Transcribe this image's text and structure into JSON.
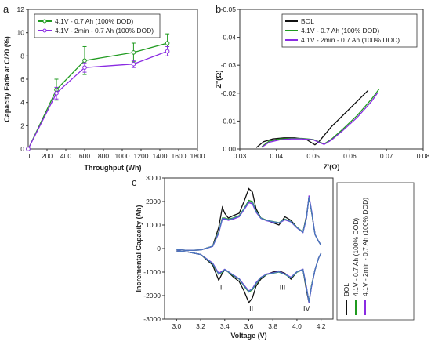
{
  "colors": {
    "black": "#111111",
    "green": "#1f9a1f",
    "purple": "#8a2be2",
    "blue": "#4a78c0"
  },
  "chart_data": [
    {
      "id": "a",
      "type": "line",
      "panel_label": "a",
      "xlabel": "Throughput (Wh)",
      "ylabel": "Capacity Fade at C/20 (%)",
      "xlim": [
        0,
        1800
      ],
      "ylim": [
        0,
        12
      ],
      "xticks": [
        "0",
        "200",
        "400",
        "600",
        "800",
        "1000",
        "1200",
        "1400",
        "1600",
        "1800"
      ],
      "yticks": [
        "0",
        "2",
        "4",
        "6",
        "8",
        "10",
        "12"
      ],
      "legend_position": "top-left",
      "series": [
        {
          "name": "4.1V - 0.7 Ah (100% DOD)",
          "color": "#1f9a1f",
          "x": [
            0,
            300,
            600,
            1120,
            1480
          ],
          "y": [
            0,
            5.1,
            7.6,
            8.3,
            9.1
          ],
          "err": [
            0,
            0.9,
            1.2,
            0.8,
            0.8
          ]
        },
        {
          "name": "4.1V - 2min - 0.7 Ah (100% DOD)",
          "color": "#8a2be2",
          "x": [
            0,
            300,
            600,
            1120,
            1480
          ],
          "y": [
            0,
            4.8,
            7.0,
            7.3,
            8.4
          ],
          "err": [
            0,
            0.5,
            0.4,
            0.3,
            0.4
          ]
        }
      ]
    },
    {
      "id": "b",
      "type": "line",
      "panel_label": "b",
      "xlabel": "Z'(Ω)",
      "ylabel": "Z''(Ω)",
      "xlim": [
        0.03,
        0.08
      ],
      "ylim": [
        0.0,
        -0.05
      ],
      "xticks": [
        "0.03",
        "0.04",
        "0.05",
        "0.06",
        "0.07",
        "0.08"
      ],
      "yticks": [
        "0.00",
        "-0.01",
        "-0.02",
        "-0.03",
        "-0.04",
        "-0.05"
      ],
      "legend_position": "top-right",
      "series": [
        {
          "name": "BOL",
          "color": "#111111",
          "x": [
            0.0345,
            0.0365,
            0.039,
            0.042,
            0.045,
            0.048,
            0.0505,
            0.0515,
            0.055,
            0.06,
            0.065
          ],
          "y": [
            -0.0005,
            -0.0026,
            -0.0036,
            -0.004,
            -0.004,
            -0.0035,
            -0.0015,
            -0.0025,
            -0.008,
            -0.0145,
            -0.021
          ]
        },
        {
          "name": "4.1V - 0.7 Ah (100% DOD)",
          "color": "#1f9a1f",
          "x": [
            0.036,
            0.038,
            0.041,
            0.044,
            0.047,
            0.05,
            0.053,
            0.055,
            0.058,
            0.062,
            0.066,
            0.068
          ],
          "y": [
            -0.0008,
            -0.0028,
            -0.0036,
            -0.0038,
            -0.0038,
            -0.0034,
            -0.0018,
            -0.0035,
            -0.007,
            -0.012,
            -0.018,
            -0.0215
          ]
        },
        {
          "name": "4.1V - 2min - 0.7 Ah (100% DOD)",
          "color": "#8a2be2",
          "x": [
            0.036,
            0.038,
            0.041,
            0.044,
            0.047,
            0.05,
            0.053,
            0.055,
            0.058,
            0.062,
            0.066,
            0.0675
          ],
          "y": [
            -0.0006,
            -0.0024,
            -0.0033,
            -0.0036,
            -0.0036,
            -0.0033,
            -0.0016,
            -0.0032,
            -0.0065,
            -0.0113,
            -0.0172,
            -0.02
          ]
        }
      ]
    },
    {
      "id": "c",
      "type": "line",
      "panel_label": "c",
      "xlabel": "Voltage (V)",
      "ylabel": "Incremental Capacity (Ah)",
      "xlim": [
        2.9,
        4.3
      ],
      "ylim": [
        -3000,
        3000
      ],
      "xticks": [
        "3.0",
        "3.2",
        "3.4",
        "3.6",
        "3.8",
        "4.0",
        "4.2"
      ],
      "yticks": [
        "-3000",
        "-2000",
        "-1000",
        "0",
        "1000",
        "2000",
        "3000"
      ],
      "legend_position": "right (rotated)",
      "peak_labels": [
        {
          "text": "I",
          "x": 3.37,
          "y": -1750
        },
        {
          "text": "II",
          "x": 3.62,
          "y": -2650
        },
        {
          "text": "III",
          "x": 3.88,
          "y": -1750
        },
        {
          "text": "IV",
          "x": 4.08,
          "y": -2650
        }
      ],
      "series": [
        {
          "name": "BOL",
          "color": "#111111",
          "charge": {
            "x": [
              3.0,
              3.1,
              3.2,
              3.3,
              3.35,
              3.38,
              3.4,
              3.43,
              3.47,
              3.52,
              3.56,
              3.6,
              3.63,
              3.66,
              3.7,
              3.75,
              3.8,
              3.85,
              3.9,
              3.95,
              4.0,
              4.05,
              4.08,
              4.1,
              4.12,
              4.15,
              4.18,
              4.2
            ],
            "y": [
              -50,
              -80,
              -60,
              100,
              900,
              1750,
              1500,
              1300,
              1400,
              1500,
              2000,
              2550,
              2400,
              1700,
              1300,
              1200,
              1100,
              1000,
              1350,
              1200,
              900,
              700,
              1400,
              2200,
              1600,
              600,
              300,
              150
            ]
          },
          "discharge": {
            "x": [
              3.0,
              3.1,
              3.2,
              3.3,
              3.35,
              3.38,
              3.4,
              3.43,
              3.47,
              3.52,
              3.56,
              3.6,
              3.63,
              3.66,
              3.7,
              3.75,
              3.8,
              3.85,
              3.9,
              3.95,
              4.0,
              4.05,
              4.08,
              4.1,
              4.12,
              4.15,
              4.18,
              4.2
            ],
            "y": [
              -100,
              -150,
              -250,
              -700,
              -1350,
              -1050,
              -900,
              -1000,
              -1200,
              -1400,
              -1800,
              -2300,
              -2100,
              -1600,
              -1300,
              -1100,
              -1000,
              -950,
              -1050,
              -1300,
              -1000,
              -900,
              -1800,
              -2300,
              -1600,
              -900,
              -400,
              -200
            ]
          }
        },
        {
          "name": "4.1V - 0.7 Ah (100% DOD)",
          "color": "#1f9a1f",
          "charge": {
            "x": [
              3.0,
              3.1,
              3.2,
              3.3,
              3.35,
              3.38,
              3.4,
              3.43,
              3.47,
              3.52,
              3.56,
              3.6,
              3.63,
              3.66,
              3.7,
              3.75,
              3.8,
              3.85,
              3.9,
              3.95,
              4.0,
              4.05,
              4.08,
              4.1,
              4.12,
              4.15,
              4.18,
              4.2
            ],
            "y": [
              -50,
              -80,
              -60,
              100,
              700,
              1300,
              1300,
              1250,
              1300,
              1400,
              1700,
              2050,
              2000,
              1600,
              1300,
              1200,
              1150,
              1100,
              1250,
              1150,
              900,
              700,
              1350,
              2200,
              1600,
              600,
              300,
              150
            ]
          },
          "discharge": {
            "x": [
              3.0,
              3.1,
              3.2,
              3.3,
              3.35,
              3.38,
              3.4,
              3.43,
              3.47,
              3.52,
              3.56,
              3.6,
              3.63,
              3.66,
              3.7,
              3.75,
              3.8,
              3.85,
              3.9,
              3.95,
              4.0,
              4.05,
              4.08,
              4.1,
              4.12,
              4.15,
              4.18,
              4.2
            ],
            "y": [
              -100,
              -150,
              -250,
              -650,
              -1100,
              -1000,
              -900,
              -1000,
              -1150,
              -1300,
              -1600,
              -1850,
              -1750,
              -1500,
              -1250,
              -1100,
              -1050,
              -1000,
              -1100,
              -1250,
              -1000,
              -900,
              -1700,
              -2250,
              -1600,
              -900,
              -400,
              -200
            ]
          }
        },
        {
          "name": "4.1V - 2min - 0.7 Ah (100% DOD)",
          "color": "#8a2be2",
          "charge": {
            "x": [
              3.0,
              3.1,
              3.2,
              3.3,
              3.35,
              3.38,
              3.4,
              3.43,
              3.47,
              3.52,
              3.56,
              3.6,
              3.63,
              3.66,
              3.7,
              3.75,
              3.8,
              3.85,
              3.9,
              3.95,
              4.0,
              4.05,
              4.08,
              4.1,
              4.12,
              4.15,
              4.18,
              4.2
            ],
            "y": [
              -50,
              -80,
              -60,
              90,
              650,
              1250,
              1250,
              1200,
              1250,
              1350,
              1650,
              1950,
              1900,
              1550,
              1280,
              1180,
              1120,
              1080,
              1220,
              1130,
              880,
              680,
              1300,
              2250,
              1650,
              600,
              300,
              150
            ]
          },
          "discharge": {
            "x": [
              3.0,
              3.1,
              3.2,
              3.3,
              3.35,
              3.38,
              3.4,
              3.43,
              3.47,
              3.52,
              3.56,
              3.6,
              3.63,
              3.66,
              3.7,
              3.75,
              3.8,
              3.85,
              3.9,
              3.95,
              4.0,
              4.05,
              4.08,
              4.1,
              4.12,
              4.15,
              4.18,
              4.2
            ],
            "y": [
              -100,
              -150,
              -250,
              -620,
              -1050,
              -950,
              -880,
              -980,
              -1120,
              -1280,
              -1550,
              -1800,
              -1700,
              -1450,
              -1220,
              -1080,
              -1030,
              -980,
              -1080,
              -1220,
              -980,
              -880,
              -1650,
              -2300,
              -1650,
              -900,
              -400,
              -200
            ]
          }
        },
        {
          "name": "",
          "color": "#4a78c0",
          "charge": {
            "x": [
              3.0,
              3.1,
              3.2,
              3.3,
              3.35,
              3.38,
              3.4,
              3.43,
              3.47,
              3.52,
              3.56,
              3.6,
              3.63,
              3.66,
              3.7,
              3.75,
              3.8,
              3.85,
              3.9,
              3.95,
              4.0,
              4.05,
              4.08,
              4.1,
              4.12,
              4.15,
              4.18,
              4.2
            ],
            "y": [
              -50,
              -80,
              -60,
              95,
              680,
              1280,
              1280,
              1230,
              1280,
              1380,
              1680,
              2000,
              1950,
              1580,
              1290,
              1190,
              1140,
              1090,
              1240,
              1140,
              890,
              690,
              1320,
              2200,
              1620,
              600,
              300,
              150
            ]
          },
          "discharge": {
            "x": [
              3.0,
              3.1,
              3.2,
              3.3,
              3.35,
              3.38,
              3.4,
              3.43,
              3.47,
              3.52,
              3.56,
              3.6,
              3.63,
              3.66,
              3.7,
              3.75,
              3.8,
              3.85,
              3.9,
              3.95,
              4.0,
              4.05,
              4.08,
              4.1,
              4.12,
              4.15,
              4.18,
              4.2
            ],
            "y": [
              -100,
              -150,
              -250,
              -640,
              -1080,
              -980,
              -890,
              -990,
              -1130,
              -1290,
              -1580,
              -1820,
              -1720,
              -1480,
              -1230,
              -1090,
              -1040,
              -990,
              -1090,
              -1240,
              -990,
              -890,
              -1680,
              -2280,
              -1620,
              -900,
              -400,
              -200
            ]
          }
        }
      ]
    }
  ]
}
